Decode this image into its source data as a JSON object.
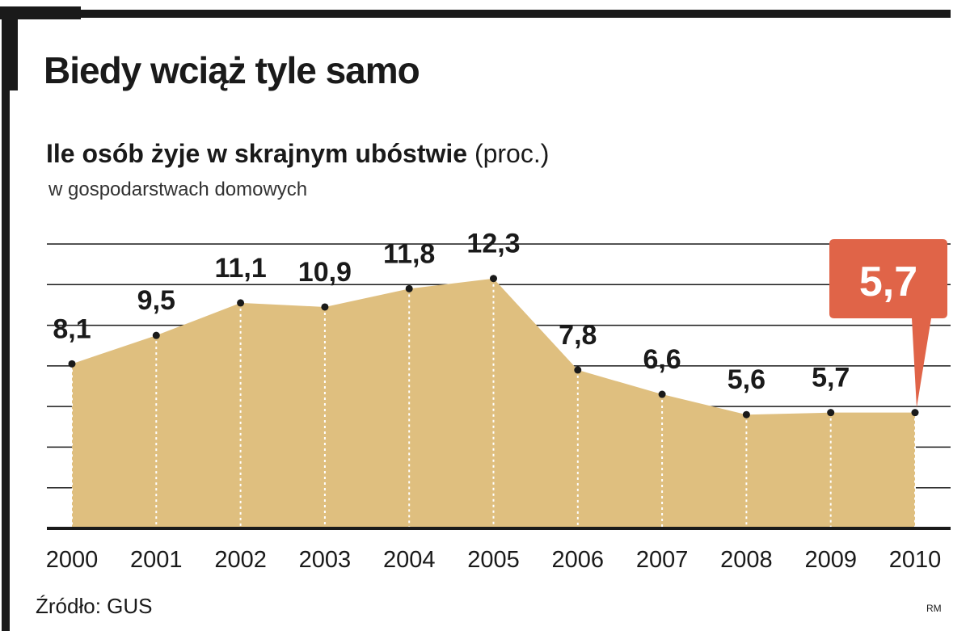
{
  "title": "Biedy wciąż tyle samo",
  "subtitle": "Ile osób żyje w skrajnym ubóstwie",
  "subtitle_unit": "(proc.)",
  "subsubtitle": "w gospodarstwach domowych",
  "source": "Źródło: GUS",
  "credit": "RM",
  "colors": {
    "area": "#dfbf7f",
    "highlight": "#e06448",
    "ink": "#1a1a1a"
  },
  "chart_data": {
    "type": "area",
    "x": [
      "2000",
      "2001",
      "2002",
      "2003",
      "2004",
      "2005",
      "2006",
      "2007",
      "2008",
      "2009",
      "2010"
    ],
    "values": [
      8.1,
      9.5,
      11.1,
      10.9,
      11.8,
      12.3,
      7.8,
      6.6,
      5.6,
      5.7,
      5.7
    ],
    "labels": [
      "8,1",
      "9,5",
      "11,1",
      "10,9",
      "11,8",
      "12,3",
      "7,8",
      "6,6",
      "5,6",
      "5,7",
      "5,7"
    ],
    "highlight_label": "5,7",
    "ylim": [
      0,
      14
    ],
    "grid": true
  }
}
